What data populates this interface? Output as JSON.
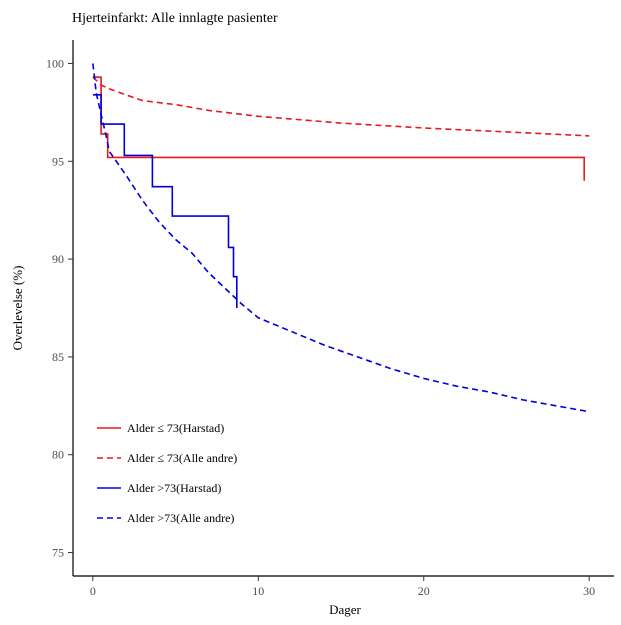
{
  "chart_data": {
    "type": "line",
    "title": "Hjerteinfarkt: Alle innlagte pasienter",
    "xlabel": "Dager",
    "ylabel": "Overlevelse (%)",
    "xlim": [
      -1.2,
      31.5
    ],
    "ylim": [
      73.8,
      101.2
    ],
    "xticks": [
      0,
      10,
      20,
      30
    ],
    "yticks": [
      75,
      80,
      85,
      90,
      95,
      100
    ],
    "grid": false,
    "legend_position": "bottom-left",
    "series": [
      {
        "name": "Alder ≤ 73(Harstad)",
        "color": "#e41a1c",
        "dash": "solid",
        "step": true,
        "points": [
          [
            0,
            99.3
          ],
          [
            0.5,
            99.3
          ],
          [
            0.5,
            96.4
          ],
          [
            0.9,
            96.4
          ],
          [
            0.9,
            95.2
          ],
          [
            29.7,
            95.2
          ],
          [
            29.7,
            94.0
          ]
        ]
      },
      {
        "name": "Alder ≤ 73(Alle andre)",
        "color": "#e41a1c",
        "dash": "dashed",
        "step": false,
        "points": [
          [
            0,
            99.3
          ],
          [
            0.5,
            98.9
          ],
          [
            1,
            98.7
          ],
          [
            2,
            98.4
          ],
          [
            3,
            98.1
          ],
          [
            5,
            97.9
          ],
          [
            7,
            97.6
          ],
          [
            10,
            97.3
          ],
          [
            15,
            96.95
          ],
          [
            20,
            96.7
          ],
          [
            25,
            96.5
          ],
          [
            30,
            96.3
          ]
        ]
      },
      {
        "name": "Alder >73(Harstad)",
        "color": "#0000dd",
        "dash": "solid",
        "step": true,
        "points": [
          [
            0,
            98.4
          ],
          [
            0.5,
            98.4
          ],
          [
            0.5,
            96.9
          ],
          [
            1.9,
            96.9
          ],
          [
            1.9,
            95.3
          ],
          [
            3.6,
            95.3
          ],
          [
            3.6,
            93.7
          ],
          [
            4.8,
            93.7
          ],
          [
            4.8,
            92.2
          ],
          [
            8.2,
            92.2
          ],
          [
            8.2,
            90.6
          ],
          [
            8.5,
            90.6
          ],
          [
            8.5,
            89.1
          ],
          [
            8.7,
            89.1
          ],
          [
            8.7,
            87.5
          ]
        ]
      },
      {
        "name": "Alder >73(Alle andre)",
        "color": "#0000dd",
        "dash": "dashed",
        "step": false,
        "points": [
          [
            0,
            100
          ],
          [
            0.2,
            98.5
          ],
          [
            0.5,
            97.4
          ],
          [
            0.8,
            96.3
          ],
          [
            1,
            95.5
          ],
          [
            2,
            94.3
          ],
          [
            3,
            93.0
          ],
          [
            4,
            91.9
          ],
          [
            5,
            91.0
          ],
          [
            6,
            90.3
          ],
          [
            7,
            89.3
          ],
          [
            8,
            88.5
          ],
          [
            9,
            87.7
          ],
          [
            10,
            87.0
          ],
          [
            12,
            86.3
          ],
          [
            14,
            85.6
          ],
          [
            16,
            85.0
          ],
          [
            18,
            84.4
          ],
          [
            20,
            83.9
          ],
          [
            22,
            83.5
          ],
          [
            24,
            83.2
          ],
          [
            26,
            82.8
          ],
          [
            28,
            82.5
          ],
          [
            30,
            82.2
          ]
        ]
      }
    ]
  }
}
